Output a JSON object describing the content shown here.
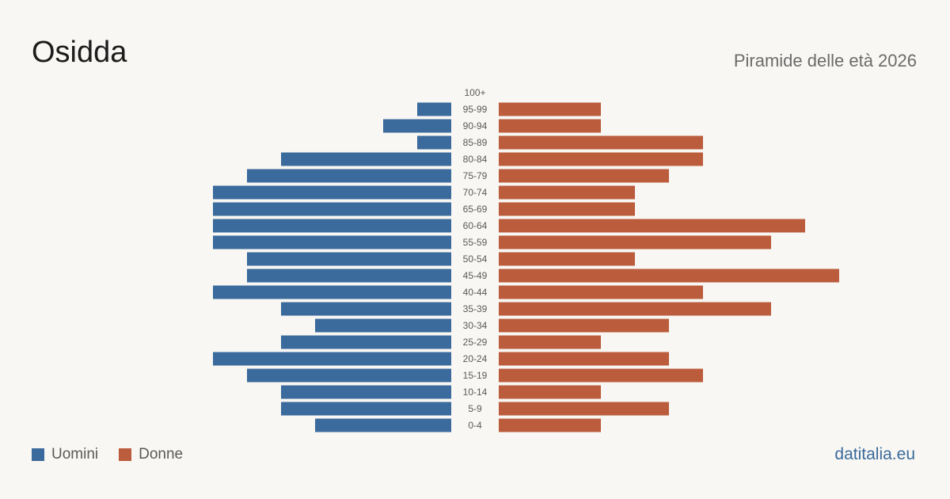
{
  "header": {
    "title": "Osidda",
    "subtitle": "Piramide delle età 2026"
  },
  "legend": {
    "male_label": "Uomini",
    "female_label": "Donne"
  },
  "footer": {
    "source": "datitalia.eu"
  },
  "colors": {
    "male": "#3b6b9c",
    "female": "#bb5d3d",
    "tick_label": "#5a5a5a",
    "background": "#f9f7f3"
  },
  "chart_data": {
    "type": "bar",
    "orientation": "horizontal-pyramid",
    "categories": [
      "100+",
      "95-99",
      "90-94",
      "85-89",
      "80-84",
      "75-79",
      "70-74",
      "65-69",
      "60-64",
      "55-59",
      "50-54",
      "45-49",
      "40-44",
      "35-39",
      "30-34",
      "25-29",
      "20-24",
      "15-19",
      "10-14",
      "5-9",
      "0-4"
    ],
    "series": [
      {
        "name": "Uomini",
        "values": [
          0,
          1,
          2,
          1,
          5,
          6,
          7,
          7,
          7,
          7,
          6,
          6,
          7,
          5,
          4,
          5,
          7,
          6,
          5,
          5,
          4
        ]
      },
      {
        "name": "Donne",
        "values": [
          0,
          3,
          3,
          6,
          6,
          5,
          4,
          4,
          9,
          8,
          4,
          10,
          6,
          8,
          5,
          3,
          5,
          6,
          3,
          5,
          3
        ]
      }
    ],
    "legend_position": "bottom-left",
    "grid": false
  }
}
